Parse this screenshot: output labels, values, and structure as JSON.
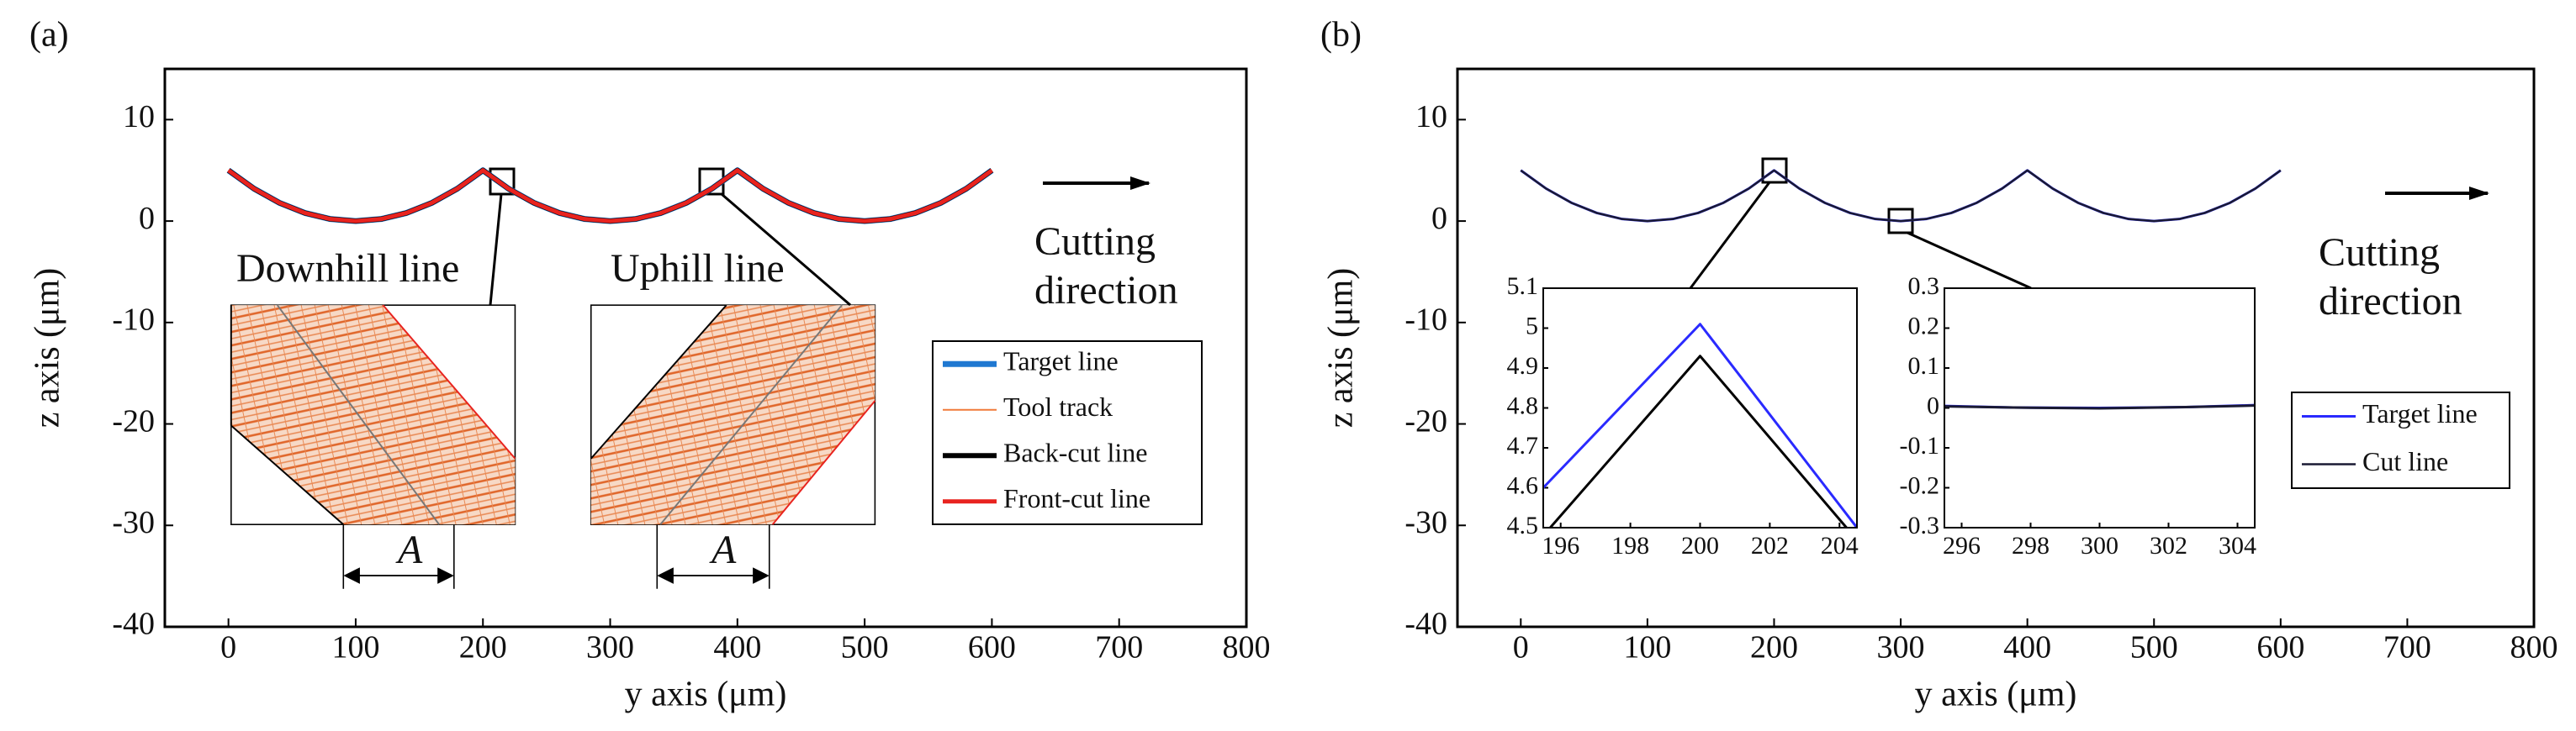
{
  "chart_data": [
    {
      "type": "line",
      "label": "(a)",
      "xlabel": "y axis (μm)",
      "ylabel": "z axis (μm)",
      "xlim": [
        -50,
        800
      ],
      "xticks": [
        0,
        100,
        200,
        300,
        400,
        500,
        600,
        700,
        800
      ],
      "ylim": [
        -40,
        15
      ],
      "yticks": [
        -40,
        -30,
        -20,
        -10,
        0,
        10
      ],
      "x": [
        0,
        20,
        40,
        60,
        80,
        100,
        120,
        140,
        160,
        180,
        200,
        220,
        240,
        260,
        280,
        300,
        320,
        340,
        360,
        380,
        400,
        420,
        440,
        460,
        480,
        500,
        520,
        540,
        560,
        580,
        600
      ],
      "series": [
        {
          "name": "Target line",
          "color": "#1f78d1",
          "values": [
            5,
            3.2,
            1.8,
            0.8,
            0.2,
            0,
            0.2,
            0.8,
            1.8,
            3.2,
            5,
            3.2,
            1.8,
            0.8,
            0.2,
            0,
            0.2,
            0.8,
            1.8,
            3.2,
            5,
            3.2,
            1.8,
            0.8,
            0.2,
            0,
            0.2,
            0.8,
            1.8,
            3.2,
            5
          ]
        },
        {
          "name": "Tool track",
          "color": "#f07a3a",
          "values": [
            5,
            3.2,
            1.8,
            0.8,
            0.2,
            0,
            0.2,
            0.8,
            1.8,
            3.2,
            5,
            3.2,
            1.8,
            0.8,
            0.2,
            0,
            0.2,
            0.8,
            1.8,
            3.2,
            5,
            3.2,
            1.8,
            0.8,
            0.2,
            0,
            0.2,
            0.8,
            1.8,
            3.2,
            5
          ]
        },
        {
          "name": "Back-cut line",
          "color": "#000000",
          "values": [
            5,
            3.2,
            1.8,
            0.8,
            0.2,
            0,
            0.2,
            0.8,
            1.8,
            3.2,
            5,
            3.2,
            1.8,
            0.8,
            0.2,
            0,
            0.2,
            0.8,
            1.8,
            3.2,
            5,
            3.2,
            1.8,
            0.8,
            0.2,
            0,
            0.2,
            0.8,
            1.8,
            3.2,
            5
          ]
        },
        {
          "name": "Front-cut line",
          "color": "#e8231f",
          "values": [
            5,
            3.2,
            1.8,
            0.8,
            0.2,
            0,
            0.2,
            0.8,
            1.8,
            3.2,
            5,
            3.2,
            1.8,
            0.8,
            0.2,
            0,
            0.2,
            0.8,
            1.8,
            3.2,
            5,
            3.2,
            1.8,
            0.8,
            0.2,
            0,
            0.2,
            0.8,
            1.8,
            3.2,
            5
          ]
        }
      ],
      "annotations": [
        "Downhill line",
        "Uphill line",
        "A",
        "A",
        "Cutting",
        "direction"
      ]
    },
    {
      "type": "line",
      "label": "(b)",
      "xlabel": "y axis (μm)",
      "ylabel": "z axis (μm)",
      "xlim": [
        -50,
        800
      ],
      "xticks": [
        0,
        100,
        200,
        300,
        400,
        500,
        600,
        700,
        800
      ],
      "ylim": [
        -40,
        15
      ],
      "yticks": [
        -40,
        -30,
        -20,
        -10,
        0,
        10
      ],
      "x": [
        0,
        20,
        40,
        60,
        80,
        100,
        120,
        140,
        160,
        180,
        200,
        220,
        240,
        260,
        280,
        300,
        320,
        340,
        360,
        380,
        400,
        420,
        440,
        460,
        480,
        500,
        520,
        540,
        560,
        580,
        600
      ],
      "series": [
        {
          "name": "Target line",
          "color": "#2a2aff",
          "values": [
            5,
            3.2,
            1.8,
            0.8,
            0.2,
            0,
            0.2,
            0.8,
            1.8,
            3.2,
            5,
            3.2,
            1.8,
            0.8,
            0.2,
            0,
            0.2,
            0.8,
            1.8,
            3.2,
            5,
            3.2,
            1.8,
            0.8,
            0.2,
            0,
            0.2,
            0.8,
            1.8,
            3.2,
            5
          ]
        },
        {
          "name": "Cut line",
          "color": "#1a1a33",
          "values": [
            5,
            3.2,
            1.8,
            0.8,
            0.2,
            0,
            0.2,
            0.8,
            1.8,
            3.2,
            5,
            3.2,
            1.8,
            0.8,
            0.2,
            0,
            0.2,
            0.8,
            1.8,
            3.2,
            5,
            3.2,
            1.8,
            0.8,
            0.2,
            0,
            0.2,
            0.8,
            1.8,
            3.2,
            5
          ]
        }
      ],
      "annotations": [
        "Cutting",
        "direction"
      ]
    },
    {
      "type": "line",
      "xlim": [
        195.5,
        204.5
      ],
      "xticks": [
        196,
        198,
        200,
        202,
        204
      ],
      "ylim": [
        4.5,
        5.1
      ],
      "yticks": [
        4.5,
        4.6,
        4.7,
        4.8,
        4.9,
        5,
        5.1
      ],
      "series": [
        {
          "color": "#2a2aff",
          "x": [
            195.5,
            200,
            204.5
          ],
          "values": [
            4.6,
            5.01,
            4.5
          ]
        },
        {
          "color": "#000000",
          "x": [
            195.7,
            200,
            204.2
          ],
          "values": [
            4.5,
            4.93,
            4.5
          ]
        }
      ]
    },
    {
      "type": "line",
      "xlim": [
        295.5,
        304.5
      ],
      "xticks": [
        296,
        298,
        300,
        302,
        304
      ],
      "ylim": [
        -0.3,
        0.3
      ],
      "yticks": [
        -0.3,
        -0.2,
        -0.1,
        0,
        0.1,
        0.2,
        0.3
      ],
      "series": [
        {
          "color": "#2a2aff",
          "x": [
            295.5,
            297.5,
            300,
            302.5,
            304.5
          ],
          "values": [
            0.005,
            0.001,
            0,
            0.002,
            0.007
          ]
        },
        {
          "color": "#1a1a33",
          "x": [
            295.5,
            297.5,
            300,
            302.5,
            304.5
          ],
          "values": [
            0.004,
            0.001,
            -0.001,
            0.002,
            0.006
          ]
        }
      ]
    }
  ]
}
